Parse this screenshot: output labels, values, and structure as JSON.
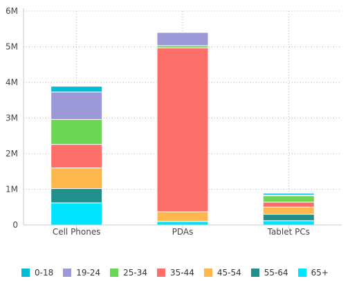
{
  "chart_data": {
    "type": "bar",
    "stacked": true,
    "categories": [
      "Cell Phones",
      "PDAs",
      "Tablet PCs"
    ],
    "y_ticks": [
      "0",
      "1M",
      "2M",
      "3M",
      "4M",
      "5M",
      "6M"
    ],
    "ylim": [
      0,
      6000000
    ],
    "grid": true,
    "legend_position": "bottom",
    "series": [
      {
        "name": "65+",
        "color": "#00e5ff",
        "values": [
          620000,
          100000,
          120000
        ]
      },
      {
        "name": "55-64",
        "color": "#21908c",
        "values": [
          400000,
          0,
          180000
        ]
      },
      {
        "name": "45-54",
        "color": "#ffb74d",
        "values": [
          580000,
          270000,
          200000
        ]
      },
      {
        "name": "35-44",
        "color": "#ff6f69",
        "values": [
          660000,
          4600000,
          140000
        ]
      },
      {
        "name": "25-34",
        "color": "#6bd654",
        "values": [
          700000,
          60000,
          180000
        ]
      },
      {
        "name": "19-24",
        "color": "#9d98d8",
        "values": [
          770000,
          370000,
          20000
        ]
      },
      {
        "name": "0-18",
        "color": "#00bcd4",
        "values": [
          160000,
          0,
          50000
        ]
      }
    ],
    "legend": [
      "0-18",
      "19-24",
      "25-34",
      "35-44",
      "45-54",
      "55-64",
      "65+"
    ]
  }
}
